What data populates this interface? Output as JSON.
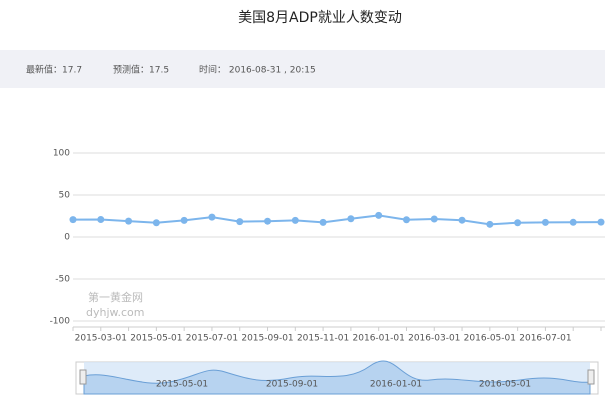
{
  "chart_data": {
    "type": "line",
    "title": "美国8月ADP就业人数变动",
    "info": [
      "最新值：17.7",
      "预测值：17.5",
      "时间： 2016-08-31 , 20:15"
    ],
    "categories": [
      null,
      "2015-03-01",
      null,
      "2015-05-01",
      null,
      "2015-07-01",
      null,
      "2015-09-01",
      null,
      "2015-11-01",
      null,
      "2016-01-01",
      null,
      "2016-03-01",
      null,
      "2016-05-01",
      null,
      "2016-07-01",
      null,
      null
    ],
    "values": [
      20.7,
      20.8,
      18.9,
      17,
      19.8,
      23.7,
      18.3,
      18.8,
      19.8,
      17.4,
      21.7,
      25.7,
      20.5,
      21.4,
      20,
      15.1,
      17,
      17.4,
      17.5,
      17.7
    ],
    "color": "#7cb5ec",
    "ylim": [
      -100,
      100
    ],
    "yticks": [
      -100,
      -50,
      0,
      50,
      100
    ],
    "grid": true,
    "watermark": [
      "第一黄金网",
      "dyhjw.com"
    ],
    "zoom_labels": [
      "2015-05-01",
      "2015-09-01",
      "2016-01-01",
      "2016-05-01"
    ]
  }
}
